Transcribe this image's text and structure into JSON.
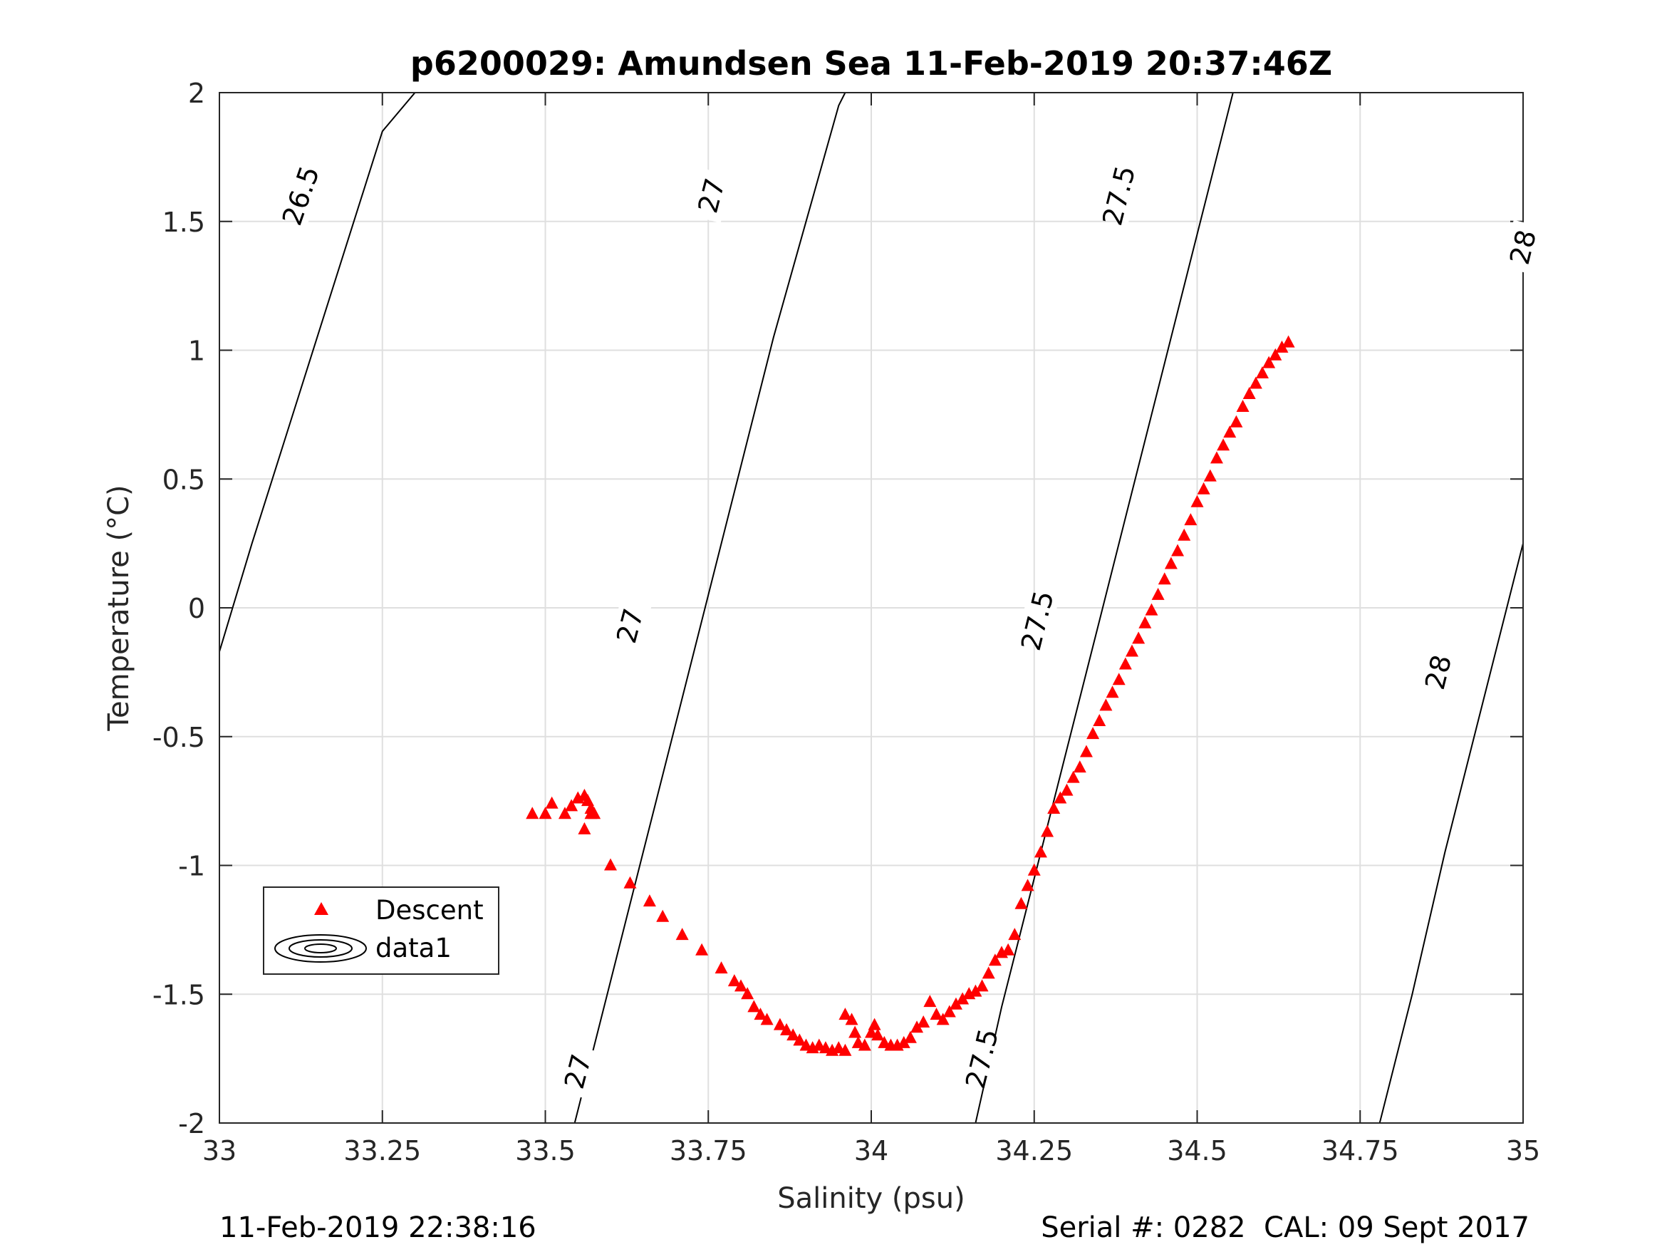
{
  "chart_data": {
    "type": "scatter",
    "title": "p6200029: Amundsen Sea 11-Feb-2019 20:37:46Z",
    "xlabel": "Salinity (psu)",
    "ylabel": "Temperature (°C)",
    "xlim": [
      33,
      35
    ],
    "ylim": [
      -2,
      2
    ],
    "x_ticks": [
      33,
      33.25,
      33.5,
      33.75,
      34,
      34.25,
      34.5,
      34.75,
      35
    ],
    "x_tick_labels": [
      "33",
      "33.25",
      "33.5",
      "33.75",
      "34",
      "34.25",
      "34.5",
      "34.75",
      "35"
    ],
    "y_ticks": [
      -2,
      -1.5,
      -1,
      -0.5,
      0,
      0.5,
      1,
      1.5,
      2
    ],
    "y_tick_labels": [
      "-2",
      "-1.5",
      "-1",
      "-0.5",
      "0",
      "0.5",
      "1",
      "1.5",
      "2"
    ],
    "grid": true,
    "legend_position": "bottom-left",
    "legend": [
      {
        "label": "Descent",
        "marker": "triangle",
        "color": "#ff0000"
      },
      {
        "label": "data1",
        "marker": "contour",
        "color": "#000000"
      }
    ],
    "density_contours": [
      {
        "level": "26.5",
        "points": [
          [
            33.0,
            -0.17
          ],
          [
            33.05,
            0.25
          ],
          [
            33.1,
            0.65
          ],
          [
            33.15,
            1.05
          ],
          [
            33.2,
            1.45
          ],
          [
            33.25,
            1.85
          ],
          [
            33.3,
            2.0
          ]
        ],
        "labels": [
          {
            "text": "26.5",
            "x": 33.125,
            "y": 1.6
          }
        ]
      },
      {
        "level": "27",
        "points": [
          [
            33.545,
            -2.0
          ],
          [
            33.6,
            -1.45
          ],
          [
            33.65,
            -0.95
          ],
          [
            33.7,
            -0.45
          ],
          [
            33.75,
            0.05
          ],
          [
            33.8,
            0.55
          ],
          [
            33.85,
            1.05
          ],
          [
            33.9,
            1.5
          ],
          [
            33.95,
            1.95
          ],
          [
            33.96,
            2.0
          ]
        ],
        "labels": [
          {
            "text": "27",
            "x": 33.55,
            "y": -1.8
          },
          {
            "text": "27",
            "x": 33.63,
            "y": -0.07
          },
          {
            "text": "27",
            "x": 33.755,
            "y": 1.6
          }
        ]
      },
      {
        "level": "27.5",
        "points": [
          [
            34.16,
            -2.0
          ],
          [
            34.2,
            -1.55
          ],
          [
            34.25,
            -1.05
          ],
          [
            34.3,
            -0.55
          ],
          [
            34.35,
            -0.05
          ],
          [
            34.4,
            0.45
          ],
          [
            34.45,
            0.95
          ],
          [
            34.5,
            1.45
          ],
          [
            34.555,
            2.0
          ]
        ],
        "labels": [
          {
            "text": "27.5",
            "x": 34.17,
            "y": -1.75
          },
          {
            "text": "27.5",
            "x": 34.255,
            "y": -0.05
          },
          {
            "text": "27.5",
            "x": 34.38,
            "y": 1.6
          }
        ]
      },
      {
        "level": "28",
        "points": [
          [
            34.78,
            -2.0
          ],
          [
            34.83,
            -1.5
          ],
          [
            34.88,
            -0.95
          ],
          [
            34.93,
            -0.45
          ],
          [
            34.98,
            0.05
          ],
          [
            35.0,
            0.25
          ]
        ],
        "labels": [
          {
            "text": "28",
            "x": 34.87,
            "y": -0.25
          },
          {
            "text": "28",
            "x": 35.0,
            "y": 1.4
          }
        ]
      }
    ],
    "series": [
      {
        "name": "Descent",
        "marker": "triangle",
        "color": "#ff0000",
        "points": [
          [
            33.48,
            -0.8
          ],
          [
            33.5,
            -0.8
          ],
          [
            33.51,
            -0.76
          ],
          [
            33.53,
            -0.8
          ],
          [
            33.54,
            -0.77
          ],
          [
            33.55,
            -0.74
          ],
          [
            33.56,
            -0.73
          ],
          [
            33.565,
            -0.75
          ],
          [
            33.57,
            -0.78
          ],
          [
            33.57,
            -0.8
          ],
          [
            33.56,
            -0.86
          ],
          [
            33.575,
            -0.8
          ],
          [
            33.6,
            -1.0
          ],
          [
            33.63,
            -1.07
          ],
          [
            33.66,
            -1.14
          ],
          [
            33.68,
            -1.2
          ],
          [
            33.71,
            -1.27
          ],
          [
            33.74,
            -1.33
          ],
          [
            33.77,
            -1.4
          ],
          [
            33.79,
            -1.45
          ],
          [
            33.8,
            -1.47
          ],
          [
            33.81,
            -1.5
          ],
          [
            33.82,
            -1.55
          ],
          [
            33.83,
            -1.58
          ],
          [
            33.84,
            -1.6
          ],
          [
            33.86,
            -1.62
          ],
          [
            33.87,
            -1.64
          ],
          [
            33.88,
            -1.66
          ],
          [
            33.89,
            -1.68
          ],
          [
            33.9,
            -1.7
          ],
          [
            33.91,
            -1.71
          ],
          [
            33.92,
            -1.7
          ],
          [
            33.93,
            -1.71
          ],
          [
            33.94,
            -1.72
          ],
          [
            33.95,
            -1.71
          ],
          [
            33.96,
            -1.72
          ],
          [
            33.96,
            -1.58
          ],
          [
            33.97,
            -1.6
          ],
          [
            33.975,
            -1.65
          ],
          [
            33.98,
            -1.69
          ],
          [
            33.99,
            -1.7
          ],
          [
            34.0,
            -1.65
          ],
          [
            34.005,
            -1.62
          ],
          [
            34.01,
            -1.66
          ],
          [
            34.02,
            -1.69
          ],
          [
            34.03,
            -1.7
          ],
          [
            34.04,
            -1.7
          ],
          [
            34.05,
            -1.69
          ],
          [
            34.06,
            -1.67
          ],
          [
            34.07,
            -1.63
          ],
          [
            34.08,
            -1.61
          ],
          [
            34.09,
            -1.53
          ],
          [
            34.1,
            -1.58
          ],
          [
            34.11,
            -1.6
          ],
          [
            34.12,
            -1.57
          ],
          [
            34.13,
            -1.54
          ],
          [
            34.14,
            -1.52
          ],
          [
            34.15,
            -1.5
          ],
          [
            34.16,
            -1.49
          ],
          [
            34.17,
            -1.47
          ],
          [
            34.18,
            -1.42
          ],
          [
            34.19,
            -1.37
          ],
          [
            34.2,
            -1.34
          ],
          [
            34.21,
            -1.33
          ],
          [
            34.22,
            -1.27
          ],
          [
            34.23,
            -1.15
          ],
          [
            34.24,
            -1.08
          ],
          [
            34.25,
            -1.02
          ],
          [
            34.26,
            -0.95
          ],
          [
            34.27,
            -0.87
          ],
          [
            34.28,
            -0.78
          ],
          [
            34.29,
            -0.74
          ],
          [
            34.3,
            -0.71
          ],
          [
            34.31,
            -0.66
          ],
          [
            34.32,
            -0.62
          ],
          [
            34.33,
            -0.56
          ],
          [
            34.34,
            -0.49
          ],
          [
            34.35,
            -0.44
          ],
          [
            34.36,
            -0.38
          ],
          [
            34.37,
            -0.33
          ],
          [
            34.38,
            -0.28
          ],
          [
            34.39,
            -0.22
          ],
          [
            34.4,
            -0.17
          ],
          [
            34.41,
            -0.12
          ],
          [
            34.42,
            -0.06
          ],
          [
            34.43,
            -0.01
          ],
          [
            34.44,
            0.05
          ],
          [
            34.45,
            0.11
          ],
          [
            34.46,
            0.17
          ],
          [
            34.47,
            0.22
          ],
          [
            34.48,
            0.28
          ],
          [
            34.49,
            0.34
          ],
          [
            34.5,
            0.41
          ],
          [
            34.51,
            0.46
          ],
          [
            34.52,
            0.51
          ],
          [
            34.53,
            0.58
          ],
          [
            34.54,
            0.63
          ],
          [
            34.55,
            0.68
          ],
          [
            34.56,
            0.72
          ],
          [
            34.57,
            0.78
          ],
          [
            34.58,
            0.83
          ],
          [
            34.59,
            0.87
          ],
          [
            34.6,
            0.91
          ],
          [
            34.61,
            0.95
          ],
          [
            34.62,
            0.98
          ],
          [
            34.63,
            1.01
          ],
          [
            34.64,
            1.03
          ]
        ]
      }
    ]
  },
  "footer": {
    "left": "11-Feb-2019 22:38:16",
    "right": "Serial #: 0282  CAL: 09 Sept 2017"
  }
}
